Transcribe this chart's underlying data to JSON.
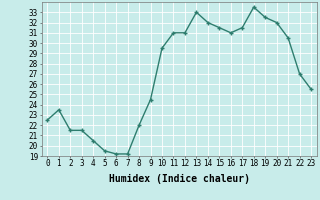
{
  "x": [
    0,
    1,
    2,
    3,
    4,
    5,
    6,
    7,
    8,
    9,
    10,
    11,
    12,
    13,
    14,
    15,
    16,
    17,
    18,
    19,
    20,
    21,
    22,
    23
  ],
  "y": [
    22.5,
    23.5,
    21.5,
    21.5,
    20.5,
    19.5,
    19.2,
    19.2,
    22.0,
    24.5,
    29.5,
    31.0,
    31.0,
    33.0,
    32.0,
    31.5,
    31.0,
    31.5,
    33.5,
    32.5,
    32.0,
    30.5,
    27.0,
    25.5
  ],
  "line_color": "#2e7d6e",
  "marker": "+",
  "marker_size": 3,
  "bg_color": "#c8ecea",
  "grid_color": "#ffffff",
  "xlabel": "Humidex (Indice chaleur)",
  "xlim": [
    -0.5,
    23.5
  ],
  "ylim": [
    19,
    34
  ],
  "yticks": [
    19,
    20,
    21,
    22,
    23,
    24,
    25,
    26,
    27,
    28,
    29,
    30,
    31,
    32,
    33
  ],
  "xticks": [
    0,
    1,
    2,
    3,
    4,
    5,
    6,
    7,
    8,
    9,
    10,
    11,
    12,
    13,
    14,
    15,
    16,
    17,
    18,
    19,
    20,
    21,
    22,
    23
  ],
  "tick_label_fontsize": 5.5,
  "xlabel_fontsize": 7,
  "xlabel_fontweight": "bold",
  "line_width": 1.0,
  "marker_edge_width": 1.0
}
